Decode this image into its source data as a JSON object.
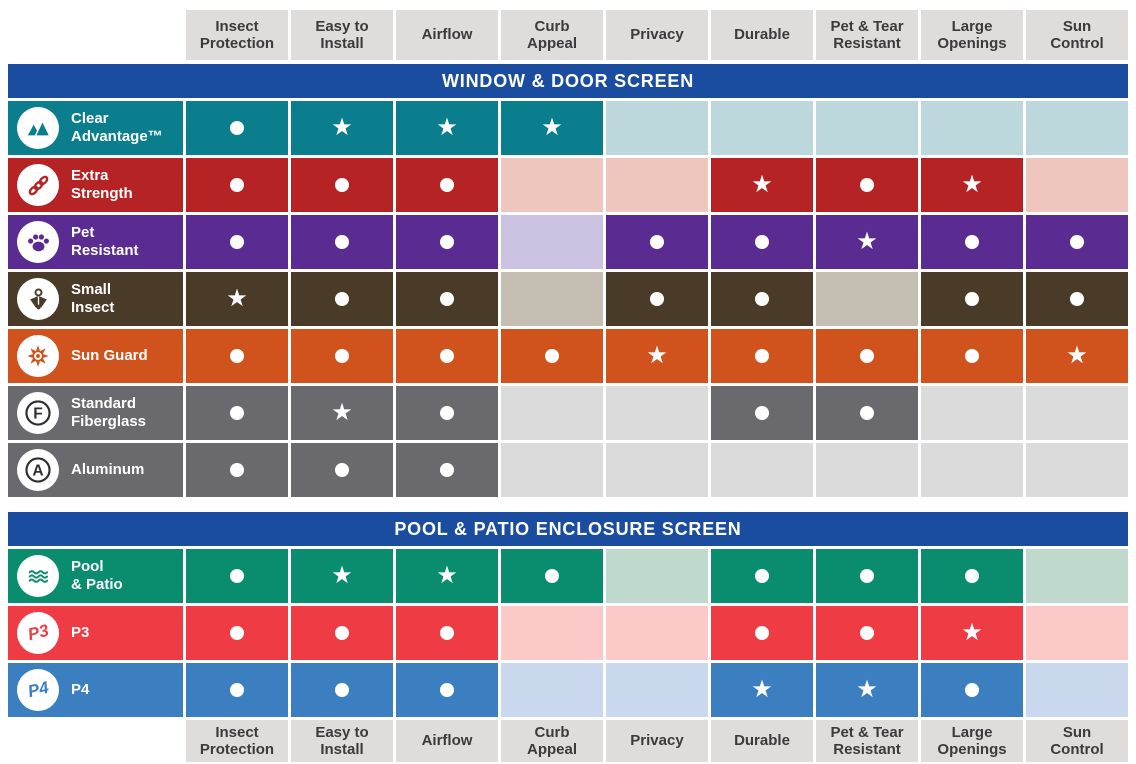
{
  "chart_data": {
    "type": "table",
    "columns": [
      "Insect\nProtection",
      "Easy to\nInstall",
      "Airflow",
      "Curb\nAppeal",
      "Privacy",
      "Durable",
      "Pet & Tear\nResistant",
      "Large\nOpenings",
      "Sun\nControl"
    ],
    "markers": {
      "dot": "filled-circle",
      "star_glyph": "★"
    },
    "header_colors": {
      "cell_bg": "#DEDDDB",
      "text": "#3B3A3D",
      "bar_bg": "#1A4C9F",
      "bar_text": "#FFFFFF"
    },
    "sections": [
      {
        "title": "WINDOW & DOOR SCREEN",
        "rows": [
          {
            "name": "Clear\nAdvantage™",
            "icon": "mountains-icon",
            "icon_text": "",
            "color": "#0A7E8C",
            "tint": "#BCD8DC",
            "cells": [
              "dot",
              "star",
              "star",
              "star",
              "",
              "",
              "",
              "",
              ""
            ]
          },
          {
            "name": "Extra\nStrength",
            "icon": "chain-link-icon",
            "icon_text": "",
            "color": "#B62324",
            "tint": "#EFC6BD",
            "cells": [
              "dot",
              "dot",
              "dot",
              "",
              "",
              "star",
              "dot",
              "star",
              ""
            ]
          },
          {
            "name": "Pet\nResistant",
            "icon": "paw-icon",
            "icon_text": "",
            "color": "#5A2C91",
            "tint": "#CCC2E2",
            "cells": [
              "dot",
              "dot",
              "dot",
              "",
              "dot",
              "dot",
              "star",
              "dot",
              "dot"
            ]
          },
          {
            "name": "Small\nInsect",
            "icon": "insect-icon",
            "icon_text": "",
            "color": "#4A3A28",
            "tint": "#C5BEB2",
            "cells": [
              "star",
              "dot",
              "dot",
              "",
              "dot",
              "dot",
              "",
              "dot",
              "dot"
            ]
          },
          {
            "name": "Sun Guard",
            "icon": "sunburst-icon",
            "icon_text": "",
            "color": "#D0531E",
            "tint": "",
            "cells": [
              "dot",
              "dot",
              "dot",
              "dot",
              "star",
              "dot",
              "dot",
              "dot",
              "star"
            ]
          },
          {
            "name": "Standard\nFiberglass",
            "icon": "letter-f-icon",
            "icon_text": "F",
            "color": "#6A696E",
            "tint": "#DCDBDB",
            "cells": [
              "dot",
              "star",
              "dot",
              "",
              "",
              "dot",
              "dot",
              "",
              ""
            ]
          },
          {
            "name": "Aluminum",
            "icon": "letter-a-icon",
            "icon_text": "A",
            "color": "#6A696E",
            "tint": "#DCDBDB",
            "cells": [
              "dot",
              "dot",
              "dot",
              "",
              "",
              "",
              "",
              "",
              ""
            ]
          }
        ]
      },
      {
        "title": "POOL & PATIO ENCLOSURE SCREEN",
        "rows": [
          {
            "name": "Pool\n& Patio",
            "icon": "waves-icon",
            "icon_text": "",
            "color": "#0A8C6E",
            "tint": "#BFD9CC",
            "cells": [
              "dot",
              "star",
              "star",
              "dot",
              "",
              "dot",
              "dot",
              "dot",
              ""
            ]
          },
          {
            "name": "P3",
            "icon": "p3-logo-icon",
            "icon_text": "P3",
            "color": "#EE3B44",
            "tint": "#FBC9C8",
            "cells": [
              "dot",
              "dot",
              "dot",
              "",
              "",
              "dot",
              "dot",
              "star",
              ""
            ]
          },
          {
            "name": "P4",
            "icon": "p4-logo-icon",
            "icon_text": "P4",
            "color": "#3C7FC0",
            "tint": "#C9D8ED",
            "cells": [
              "dot",
              "dot",
              "dot",
              "",
              "",
              "star",
              "star",
              "dot",
              ""
            ]
          }
        ]
      }
    ]
  }
}
